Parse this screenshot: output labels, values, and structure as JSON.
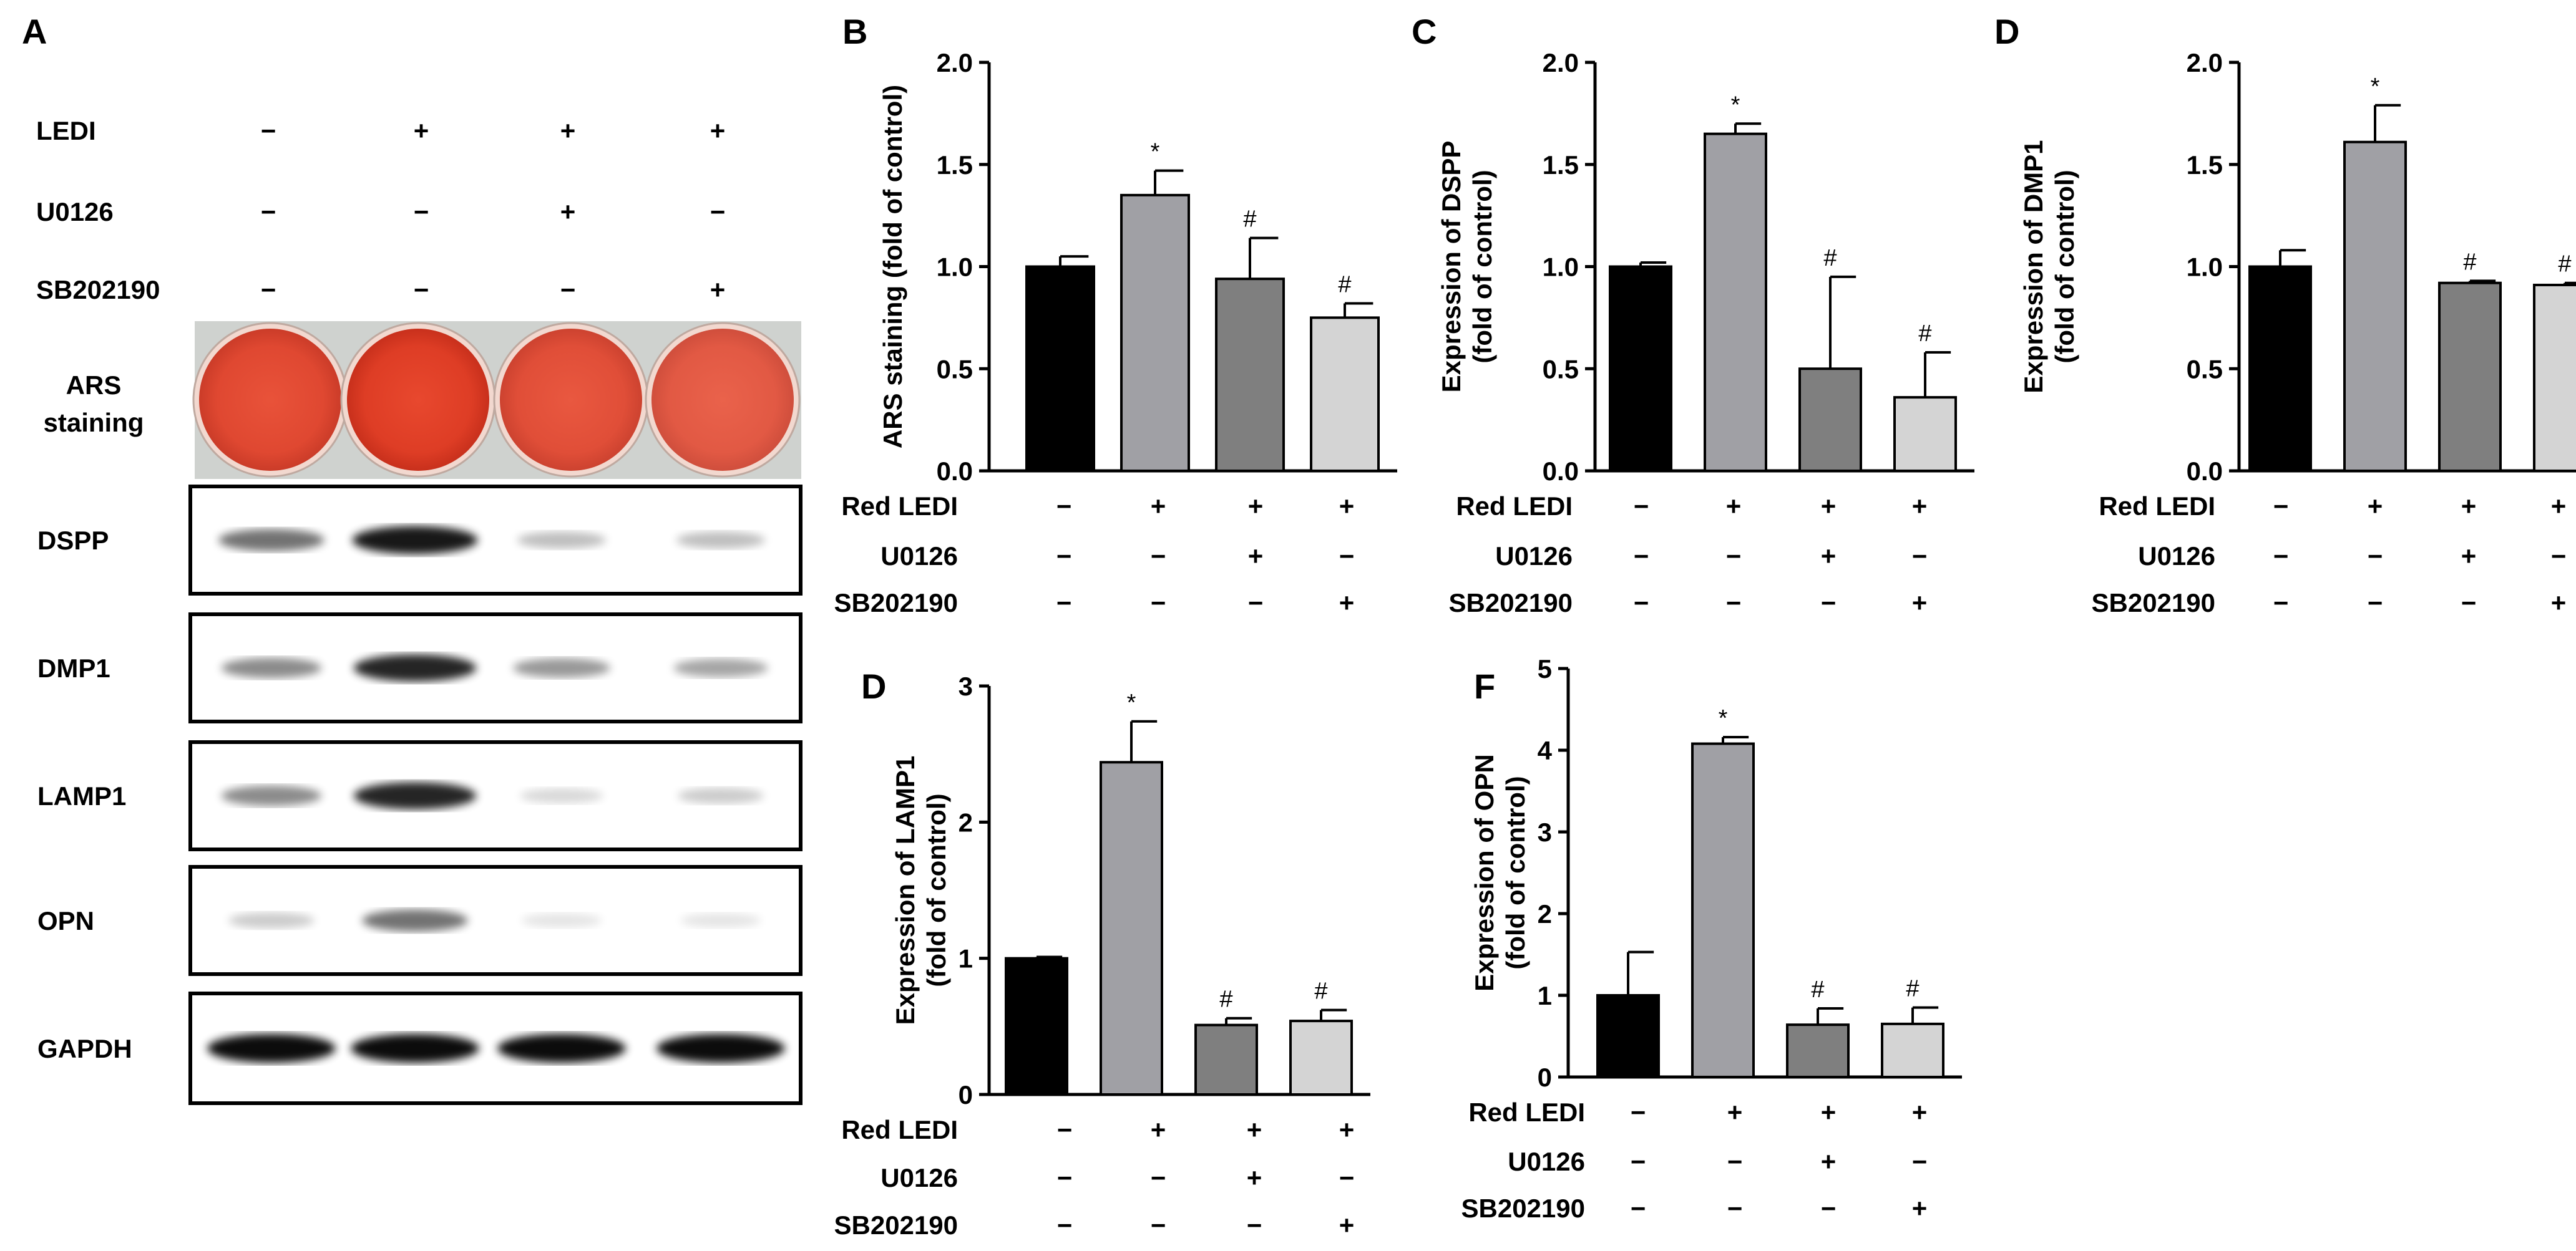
{
  "panel_a": {
    "letter": "A",
    "conditions": [
      {
        "label": "LEDI",
        "signs": [
          "−",
          "+",
          "+",
          "+"
        ]
      },
      {
        "label": "U0126",
        "signs": [
          "−",
          "−",
          "+",
          "−"
        ]
      },
      {
        "label": "SB202190",
        "signs": [
          "−",
          "−",
          "−",
          "+"
        ]
      }
    ],
    "ars": {
      "label_line1": "ARS",
      "label_line2": "staining",
      "dish_intensity": [
        0.85,
        1.0,
        0.75,
        0.6
      ]
    },
    "blots": [
      {
        "label": "DSPP",
        "band_intensity": [
          0.55,
          0.9,
          0.25,
          0.25
        ]
      },
      {
        "label": "DMP1",
        "band_intensity": [
          0.45,
          0.85,
          0.4,
          0.35
        ]
      },
      {
        "label": "LAMP1",
        "band_intensity": [
          0.45,
          0.85,
          0.15,
          0.2
        ]
      },
      {
        "label": "OPN",
        "band_intensity": [
          0.2,
          0.55,
          0.1,
          0.1
        ]
      },
      {
        "label": "GAPDH",
        "band_intensity": [
          0.95,
          0.95,
          0.95,
          0.95
        ]
      }
    ]
  },
  "colors": [
    "#000000",
    "#a0a0a5",
    "#7f7f7f",
    "#d4d4d4"
  ],
  "chart_data": [
    {
      "letter": "B",
      "type": "bar",
      "ylabel_lines": [
        "ARS staining (fold of control)"
      ],
      "ylim": [
        0,
        2.0
      ],
      "yticks": [
        "0.0",
        "0.5",
        "1.0",
        "1.5",
        "2.0"
      ],
      "values": [
        1.0,
        1.35,
        0.94,
        0.75
      ],
      "errors": [
        0.05,
        0.12,
        0.2,
        0.07
      ],
      "marks": [
        "",
        "*",
        "#",
        "#"
      ],
      "rows": [
        {
          "label": "Red LEDI",
          "signs": [
            "−",
            "+",
            "+",
            "+"
          ]
        },
        {
          "label": "U0126",
          "signs": [
            "−",
            "−",
            "+",
            "−"
          ]
        },
        {
          "label": "SB202190",
          "signs": [
            "−",
            "−",
            "−",
            "+"
          ]
        }
      ]
    },
    {
      "letter": "C",
      "type": "bar",
      "ylabel_lines": [
        "Expression of DSPP",
        "(fold of control)"
      ],
      "ylim": [
        0,
        2.0
      ],
      "yticks": [
        "0.0",
        "0.5",
        "1.0",
        "1.5",
        "2.0"
      ],
      "values": [
        1.0,
        1.65,
        0.5,
        0.36
      ],
      "errors": [
        0.02,
        0.05,
        0.45,
        0.22
      ],
      "marks": [
        "",
        "*",
        "#",
        "#"
      ],
      "rows": [
        {
          "label": "Red LEDI",
          "signs": [
            "−",
            "+",
            "+",
            "+"
          ]
        },
        {
          "label": "U0126",
          "signs": [
            "−",
            "−",
            "+",
            "−"
          ]
        },
        {
          "label": "SB202190",
          "signs": [
            "−",
            "−",
            "−",
            "+"
          ]
        }
      ]
    },
    {
      "letter": "D",
      "type": "bar",
      "ylabel_lines": [
        "Expression of DMP1",
        "(fold of control)"
      ],
      "ylim": [
        0,
        2.0
      ],
      "yticks": [
        "0.0",
        "0.5",
        "1.0",
        "1.5",
        "2.0"
      ],
      "values": [
        1.0,
        1.61,
        0.92,
        0.91
      ],
      "errors": [
        0.08,
        0.18,
        0.01,
        0.01
      ],
      "marks": [
        "",
        "*",
        "#",
        "#"
      ],
      "rows": [
        {
          "label": "Red LEDI",
          "signs": [
            "−",
            "+",
            "+",
            "+"
          ]
        },
        {
          "label": "U0126",
          "signs": [
            "−",
            "−",
            "+",
            "−"
          ]
        },
        {
          "label": "SB202190",
          "signs": [
            "−",
            "−",
            "−",
            "+"
          ]
        }
      ]
    },
    {
      "letter": "D",
      "type": "bar",
      "ylabel_lines": [
        "Expression of LAMP1",
        "(fold of control)"
      ],
      "ylim": [
        0,
        3
      ],
      "yticks": [
        "0",
        "1",
        "2",
        "3"
      ],
      "values": [
        1.0,
        2.44,
        0.51,
        0.54
      ],
      "errors": [
        0.01,
        0.3,
        0.05,
        0.08
      ],
      "marks": [
        "",
        "*",
        "#",
        "#"
      ],
      "rows": [
        {
          "label": "Red LEDI",
          "signs": [
            "−",
            "+",
            "+",
            "+"
          ]
        },
        {
          "label": "U0126",
          "signs": [
            "−",
            "−",
            "+",
            "−"
          ]
        },
        {
          "label": "SB202190",
          "signs": [
            "−",
            "−",
            "−",
            "+"
          ]
        }
      ]
    },
    {
      "letter": "F",
      "type": "bar",
      "ylabel_lines": [
        "Expression of OPN",
        "(fold of control)"
      ],
      "ylim": [
        0,
        5
      ],
      "yticks": [
        "0",
        "1",
        "2",
        "3",
        "4",
        "5"
      ],
      "values": [
        1.0,
        4.08,
        0.64,
        0.65
      ],
      "errors": [
        0.53,
        0.08,
        0.2,
        0.2
      ],
      "marks": [
        "",
        "*",
        "#",
        "#"
      ],
      "rows": [
        {
          "label": "Red LEDI",
          "signs": [
            "−",
            "+",
            "+",
            "+"
          ]
        },
        {
          "label": "U0126",
          "signs": [
            "−",
            "−",
            "+",
            "−"
          ]
        },
        {
          "label": "SB202190",
          "signs": [
            "−",
            "−",
            "−",
            "+"
          ]
        }
      ]
    }
  ]
}
